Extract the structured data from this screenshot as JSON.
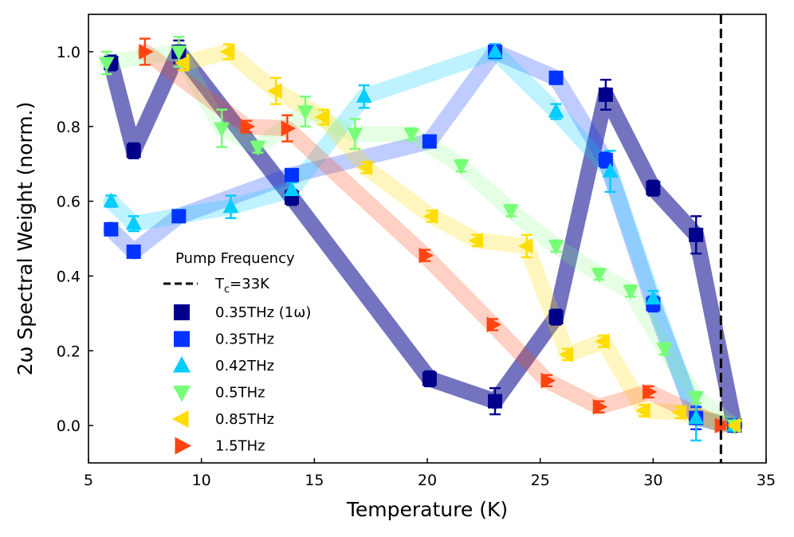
{
  "chart_data": {
    "type": "line",
    "xlabel": "Temperature (K)",
    "ylabel": "2ω Spectral Weight (norm.)",
    "xlim": [
      5,
      35
    ],
    "ylim": [
      -0.1,
      1.1
    ],
    "xticks": [
      5,
      10,
      15,
      20,
      25,
      30,
      35
    ],
    "yticks": [
      0.0,
      0.2,
      0.4,
      0.6,
      0.8,
      1.0
    ],
    "ytick_labels": [
      "0.0",
      "0.2",
      "0.4",
      "0.6",
      "0.8",
      "1.0"
    ],
    "grid": false,
    "legend_position": "center-left",
    "legend_title": "Pump Frequency",
    "vline": {
      "x": 33,
      "label_main": "T",
      "label_sub": "c",
      "label_rest": "=33K",
      "style": "dashed",
      "color": "#000000"
    },
    "series": [
      {
        "name": "0.35THz (1ω)",
        "color": "#00008b",
        "band_opacity": 0.55,
        "marker": "square",
        "x": [
          6.0,
          7.0,
          9.0,
          14.0,
          20.1,
          23.0,
          25.7,
          27.9,
          30.0,
          31.9,
          33.6
        ],
        "y": [
          0.97,
          0.735,
          1.0,
          0.61,
          0.125,
          0.065,
          0.29,
          0.885,
          0.635,
          0.51,
          0.0
        ],
        "err": [
          0.02,
          0.02,
          0.03,
          0.02,
          0.02,
          0.035,
          0.02,
          0.04,
          0.02,
          0.05,
          0.01
        ]
      },
      {
        "name": "0.35THz",
        "color": "#0033ff",
        "band_opacity": 0.25,
        "marker": "square",
        "x": [
          6.0,
          7.0,
          9.0,
          14.0,
          20.1,
          23.0,
          25.7,
          27.9,
          30.0,
          31.9,
          33.6
        ],
        "y": [
          0.525,
          0.465,
          0.56,
          0.67,
          0.76,
          1.0,
          0.93,
          0.71,
          0.325,
          0.02,
          0.0
        ],
        "err": [
          0.015,
          0.015,
          0.015,
          0.015,
          0.015,
          0.02,
          0.015,
          0.02,
          0.02,
          0.03,
          0.01
        ]
      },
      {
        "name": "0.42THz",
        "color": "#00ccff",
        "band_opacity": 0.25,
        "marker": "triangle-up",
        "x": [
          6.0,
          7.0,
          11.3,
          14.0,
          17.2,
          23.0,
          25.7,
          28.1,
          30.0,
          31.9,
          33.6
        ],
        "y": [
          0.6,
          0.54,
          0.585,
          0.63,
          0.88,
          1.0,
          0.84,
          0.68,
          0.34,
          0.02,
          0.0
        ],
        "err": [
          0.015,
          0.02,
          0.03,
          0.02,
          0.03,
          0.02,
          0.02,
          0.055,
          0.02,
          0.06,
          0.01
        ]
      },
      {
        "name": "0.5THz",
        "color": "#77ff77",
        "band_opacity": 0.2,
        "marker": "triangle-down",
        "x": [
          5.8,
          9.0,
          10.9,
          12.5,
          14.6,
          16.8,
          19.3,
          21.5,
          23.7,
          25.7,
          27.6,
          29.0,
          30.5,
          31.9,
          33.6
        ],
        "y": [
          0.97,
          1.0,
          0.795,
          0.745,
          0.84,
          0.78,
          0.78,
          0.695,
          0.575,
          0.48,
          0.405,
          0.36,
          0.205,
          0.075,
          0.0
        ],
        "err": [
          0.03,
          0.04,
          0.05,
          0.015,
          0.04,
          0.04,
          0.015,
          0.015,
          0.015,
          0.015,
          0.015,
          0.015,
          0.015,
          0.015,
          0.015
        ]
      },
      {
        "name": "0.85THz",
        "color": "#ffdd00",
        "band_opacity": 0.25,
        "marker": "triangle-left",
        "x": [
          9.2,
          11.2,
          13.3,
          15.4,
          17.3,
          20.2,
          22.2,
          24.4,
          26.2,
          27.8,
          29.6,
          31.2,
          33.6
        ],
        "y": [
          0.97,
          1.0,
          0.895,
          0.825,
          0.69,
          0.56,
          0.495,
          0.48,
          0.19,
          0.225,
          0.04,
          0.035,
          0.0
        ],
        "err": [
          0.02,
          0.02,
          0.035,
          0.02,
          0.015,
          0.015,
          0.015,
          0.03,
          0.015,
          0.015,
          0.015,
          0.015,
          0.01
        ]
      },
      {
        "name": "1.5THz",
        "color": "#ff4411",
        "band_opacity": 0.25,
        "marker": "triangle-right",
        "x": [
          7.5,
          12.0,
          13.8,
          19.9,
          22.9,
          25.3,
          27.6,
          29.8,
          33.0
        ],
        "y": [
          1.0,
          0.8,
          0.795,
          0.455,
          0.27,
          0.12,
          0.05,
          0.09,
          0.0
        ],
        "err": [
          0.035,
          0.015,
          0.035,
          0.015,
          0.015,
          0.015,
          0.015,
          0.015,
          0.01
        ]
      }
    ]
  }
}
